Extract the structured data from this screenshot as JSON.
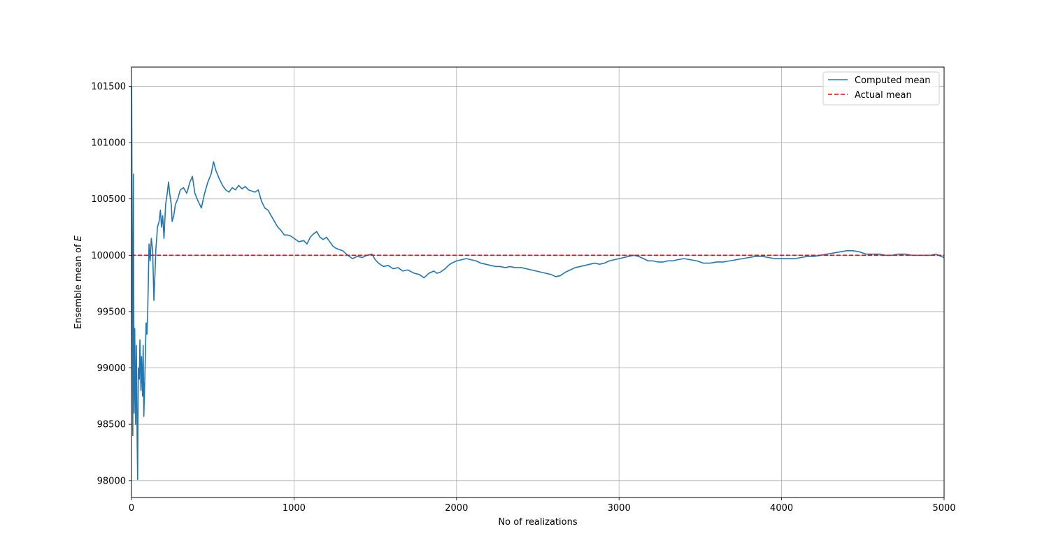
{
  "chart_data": {
    "type": "line",
    "title": "",
    "xlabel": "No of realizations",
    "ylabel": "Ensemble mean of E",
    "ylabel_parts": {
      "text": "Ensemble mean of ",
      "symbol": "E"
    },
    "xlim": [
      0,
      5000
    ],
    "ylim": [
      97850,
      101670
    ],
    "x_ticks": [
      0,
      1000,
      2000,
      3000,
      4000,
      5000
    ],
    "y_ticks": [
      98000,
      98500,
      99000,
      99500,
      100000,
      100500,
      101000,
      101500
    ],
    "x_tick_labels": [
      "0",
      "1000",
      "2000",
      "3000",
      "4000",
      "5000"
    ],
    "y_tick_labels": [
      "98000",
      "98500",
      "99000",
      "99500",
      "100000",
      "100500",
      "101000",
      "101500"
    ],
    "grid": true,
    "legend": {
      "position": "top-right",
      "entries": [
        "Computed mean",
        "Actual mean"
      ]
    },
    "series": [
      {
        "name": "Computed mean",
        "color": "#1f77b4",
        "style": "solid",
        "points": [
          [
            1,
            101500
          ],
          [
            5,
            99800
          ],
          [
            8,
            98400
          ],
          [
            12,
            100720
          ],
          [
            16,
            98600
          ],
          [
            20,
            99350
          ],
          [
            25,
            98500
          ],
          [
            30,
            99200
          ],
          [
            35,
            98350
          ],
          [
            38,
            98010
          ],
          [
            42,
            99000
          ],
          [
            48,
            98900
          ],
          [
            52,
            99250
          ],
          [
            58,
            98800
          ],
          [
            62,
            99100
          ],
          [
            68,
            98750
          ],
          [
            72,
            99200
          ],
          [
            76,
            98570
          ],
          [
            82,
            98900
          ],
          [
            90,
            99400
          ],
          [
            95,
            99300
          ],
          [
            100,
            99500
          ],
          [
            108,
            100100
          ],
          [
            115,
            99950
          ],
          [
            122,
            100150
          ],
          [
            130,
            100050
          ],
          [
            138,
            99600
          ],
          [
            145,
            99850
          ],
          [
            150,
            100050
          ],
          [
            160,
            100250
          ],
          [
            170,
            100300
          ],
          [
            178,
            100400
          ],
          [
            185,
            100250
          ],
          [
            192,
            100350
          ],
          [
            200,
            100150
          ],
          [
            210,
            100450
          ],
          [
            220,
            100550
          ],
          [
            228,
            100650
          ],
          [
            235,
            100550
          ],
          [
            245,
            100450
          ],
          [
            250,
            100300
          ],
          [
            260,
            100350
          ],
          [
            270,
            100450
          ],
          [
            285,
            100500
          ],
          [
            300,
            100580
          ],
          [
            320,
            100600
          ],
          [
            340,
            100550
          ],
          [
            360,
            100650
          ],
          [
            375,
            100700
          ],
          [
            390,
            100550
          ],
          [
            410,
            100480
          ],
          [
            430,
            100420
          ],
          [
            450,
            100550
          ],
          [
            470,
            100650
          ],
          [
            490,
            100720
          ],
          [
            505,
            100830
          ],
          [
            520,
            100750
          ],
          [
            540,
            100680
          ],
          [
            560,
            100620
          ],
          [
            580,
            100580
          ],
          [
            600,
            100560
          ],
          [
            620,
            100600
          ],
          [
            640,
            100580
          ],
          [
            660,
            100620
          ],
          [
            680,
            100590
          ],
          [
            700,
            100610
          ],
          [
            720,
            100580
          ],
          [
            740,
            100570
          ],
          [
            760,
            100560
          ],
          [
            780,
            100580
          ],
          [
            800,
            100480
          ],
          [
            820,
            100420
          ],
          [
            840,
            100400
          ],
          [
            860,
            100350
          ],
          [
            880,
            100300
          ],
          [
            900,
            100250
          ],
          [
            920,
            100220
          ],
          [
            940,
            100180
          ],
          [
            960,
            100180
          ],
          [
            980,
            100170
          ],
          [
            1000,
            100150
          ],
          [
            1030,
            100120
          ],
          [
            1060,
            100130
          ],
          [
            1080,
            100100
          ],
          [
            1100,
            100160
          ],
          [
            1120,
            100190
          ],
          [
            1140,
            100210
          ],
          [
            1160,
            100160
          ],
          [
            1180,
            100140
          ],
          [
            1200,
            100160
          ],
          [
            1220,
            100120
          ],
          [
            1240,
            100080
          ],
          [
            1260,
            100060
          ],
          [
            1280,
            100050
          ],
          [
            1300,
            100040
          ],
          [
            1330,
            100000
          ],
          [
            1360,
            99970
          ],
          [
            1390,
            99990
          ],
          [
            1420,
            99980
          ],
          [
            1450,
            100000
          ],
          [
            1480,
            100010
          ],
          [
            1500,
            99960
          ],
          [
            1520,
            99930
          ],
          [
            1550,
            99900
          ],
          [
            1580,
            99910
          ],
          [
            1610,
            99880
          ],
          [
            1640,
            99890
          ],
          [
            1670,
            99860
          ],
          [
            1700,
            99870
          ],
          [
            1740,
            99840
          ],
          [
            1770,
            99830
          ],
          [
            1800,
            99800
          ],
          [
            1830,
            99840
          ],
          [
            1860,
            99860
          ],
          [
            1880,
            99840
          ],
          [
            1900,
            99850
          ],
          [
            1930,
            99880
          ],
          [
            1950,
            99910
          ],
          [
            1970,
            99930
          ],
          [
            2000,
            99950
          ],
          [
            2030,
            99960
          ],
          [
            2060,
            99970
          ],
          [
            2090,
            99960
          ],
          [
            2120,
            99950
          ],
          [
            2150,
            99930
          ],
          [
            2180,
            99920
          ],
          [
            2210,
            99910
          ],
          [
            2240,
            99900
          ],
          [
            2270,
            99900
          ],
          [
            2300,
            99890
          ],
          [
            2330,
            99900
          ],
          [
            2360,
            99890
          ],
          [
            2400,
            99890
          ],
          [
            2430,
            99880
          ],
          [
            2460,
            99870
          ],
          [
            2490,
            99860
          ],
          [
            2520,
            99850
          ],
          [
            2550,
            99840
          ],
          [
            2580,
            99830
          ],
          [
            2610,
            99810
          ],
          [
            2640,
            99820
          ],
          [
            2670,
            99850
          ],
          [
            2700,
            99870
          ],
          [
            2730,
            99890
          ],
          [
            2760,
            99900
          ],
          [
            2790,
            99910
          ],
          [
            2820,
            99920
          ],
          [
            2850,
            99930
          ],
          [
            2880,
            99920
          ],
          [
            2910,
            99930
          ],
          [
            2940,
            99950
          ],
          [
            2970,
            99960
          ],
          [
            3000,
            99970
          ],
          [
            3030,
            99980
          ],
          [
            3060,
            99990
          ],
          [
            3090,
            100000
          ],
          [
            3120,
            99990
          ],
          [
            3150,
            99970
          ],
          [
            3180,
            99950
          ],
          [
            3210,
            99950
          ],
          [
            3240,
            99940
          ],
          [
            3270,
            99940
          ],
          [
            3300,
            99950
          ],
          [
            3330,
            99950
          ],
          [
            3360,
            99960
          ],
          [
            3400,
            99970
          ],
          [
            3440,
            99960
          ],
          [
            3480,
            99950
          ],
          [
            3520,
            99930
          ],
          [
            3560,
            99930
          ],
          [
            3600,
            99940
          ],
          [
            3640,
            99940
          ],
          [
            3680,
            99950
          ],
          [
            3720,
            99960
          ],
          [
            3760,
            99970
          ],
          [
            3800,
            99980
          ],
          [
            3840,
            99990
          ],
          [
            3880,
            99990
          ],
          [
            3920,
            99980
          ],
          [
            3960,
            99970
          ],
          [
            4000,
            99970
          ],
          [
            4040,
            99970
          ],
          [
            4080,
            99970
          ],
          [
            4120,
            99980
          ],
          [
            4160,
            99990
          ],
          [
            4200,
            99990
          ],
          [
            4240,
            100000
          ],
          [
            4280,
            100010
          ],
          [
            4320,
            100020
          ],
          [
            4360,
            100030
          ],
          [
            4400,
            100040
          ],
          [
            4440,
            100040
          ],
          [
            4480,
            100030
          ],
          [
            4520,
            100010
          ],
          [
            4560,
            100010
          ],
          [
            4600,
            100010
          ],
          [
            4640,
            100000
          ],
          [
            4680,
            100000
          ],
          [
            4720,
            100010
          ],
          [
            4760,
            100010
          ],
          [
            4800,
            100000
          ],
          [
            4840,
            100000
          ],
          [
            4880,
            100000
          ],
          [
            4920,
            100000
          ],
          [
            4950,
            100010
          ],
          [
            4980,
            99990
          ],
          [
            5000,
            99980
          ]
        ]
      },
      {
        "name": "Actual mean",
        "color": "#ff0000",
        "style": "dashed",
        "points": [
          [
            0,
            100000
          ],
          [
            5000,
            100000
          ]
        ]
      }
    ]
  }
}
